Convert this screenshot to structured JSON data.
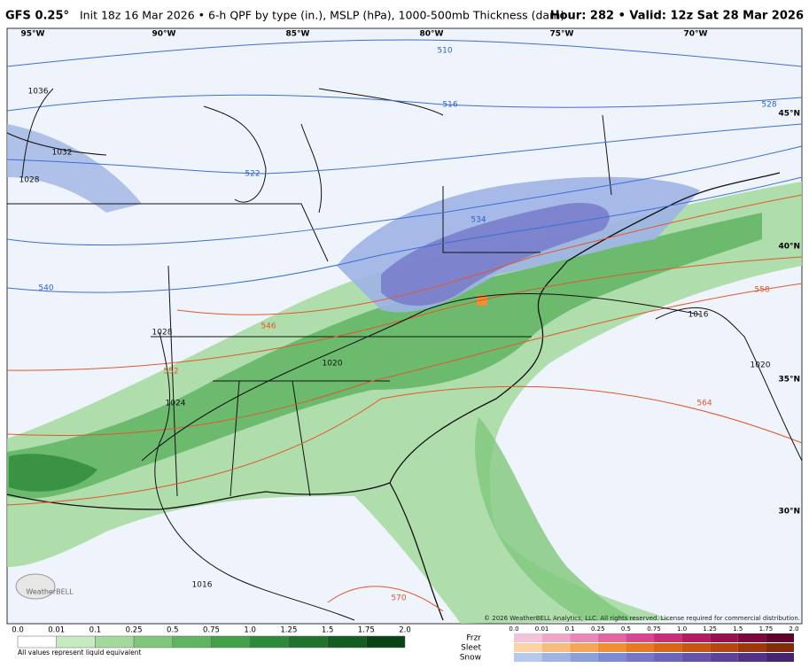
{
  "header": {
    "model": "GFS 0.25°",
    "description": "Init 18z 16 Mar 2026 • 6-h QPF by type (in.), MSLP (hPa), 1000-500mb Thickness (dam)",
    "hour": "Hour: 282 • Valid: 12z Sat 28 Mar 2026"
  },
  "map": {
    "longitudes": [
      "95°W",
      "90°W",
      "85°W",
      "80°W",
      "75°W",
      "70°W"
    ],
    "latitudes": [
      "45°N",
      "40°N",
      "35°N",
      "30°N"
    ],
    "thickness_labels": [
      "510",
      "516",
      "522",
      "528",
      "534",
      "540",
      "546",
      "552",
      "558",
      "564",
      "570"
    ],
    "pressure_labels": [
      "1036",
      "1032",
      "1028",
      "1028",
      "1024",
      "1020",
      "1016",
      "1016",
      "1020"
    ],
    "copyright": "© 2026 WeatherBELL Analytics, LLC. All rights reserved. License required for commercial distribution.",
    "logo": "WeatherBELL"
  },
  "legend": {
    "rain": {
      "ticks": [
        "0.0",
        "0.01",
        "0.1",
        "0.25",
        "0.5",
        "0.75",
        "1.0",
        "1.25",
        "1.5",
        "1.75",
        "2.0"
      ],
      "colors": [
        "#ffffff",
        "#c8eac3",
        "#a3d99d",
        "#80c77c",
        "#5fb461",
        "#43a04b",
        "#2e8a3b",
        "#1f732e",
        "#135c22",
        "#074315"
      ],
      "note": "All values represent liquid equivalent"
    },
    "mixed": {
      "ticks": [
        "0.0",
        "0.01",
        "0.1",
        "0.25",
        "0.5",
        "0.75",
        "1.0",
        "1.25",
        "1.5",
        "1.75",
        "2.0"
      ],
      "rows": [
        {
          "name": "Frzr",
          "colors": [
            "#f3c3d9",
            "#efa6c8",
            "#ea87b6",
            "#e365a2",
            "#d9478e",
            "#c92f78",
            "#b21d62",
            "#98104f",
            "#7d083d",
            "#62032d"
          ]
        },
        {
          "name": "Sleet",
          "colors": [
            "#fbd4a6",
            "#f8bd7c",
            "#f4a655",
            "#ef9035",
            "#e57a22",
            "#d86818",
            "#c85613",
            "#b4460e",
            "#9c380a",
            "#832b06"
          ]
        },
        {
          "name": "Snow",
          "colors": [
            "#b7c9ec",
            "#9fb4e4",
            "#8a9fdc",
            "#7c8bd3",
            "#7477c8",
            "#6d64bb",
            "#6652ab",
            "#5e419a",
            "#533287",
            "#472573"
          ]
        }
      ]
    }
  }
}
